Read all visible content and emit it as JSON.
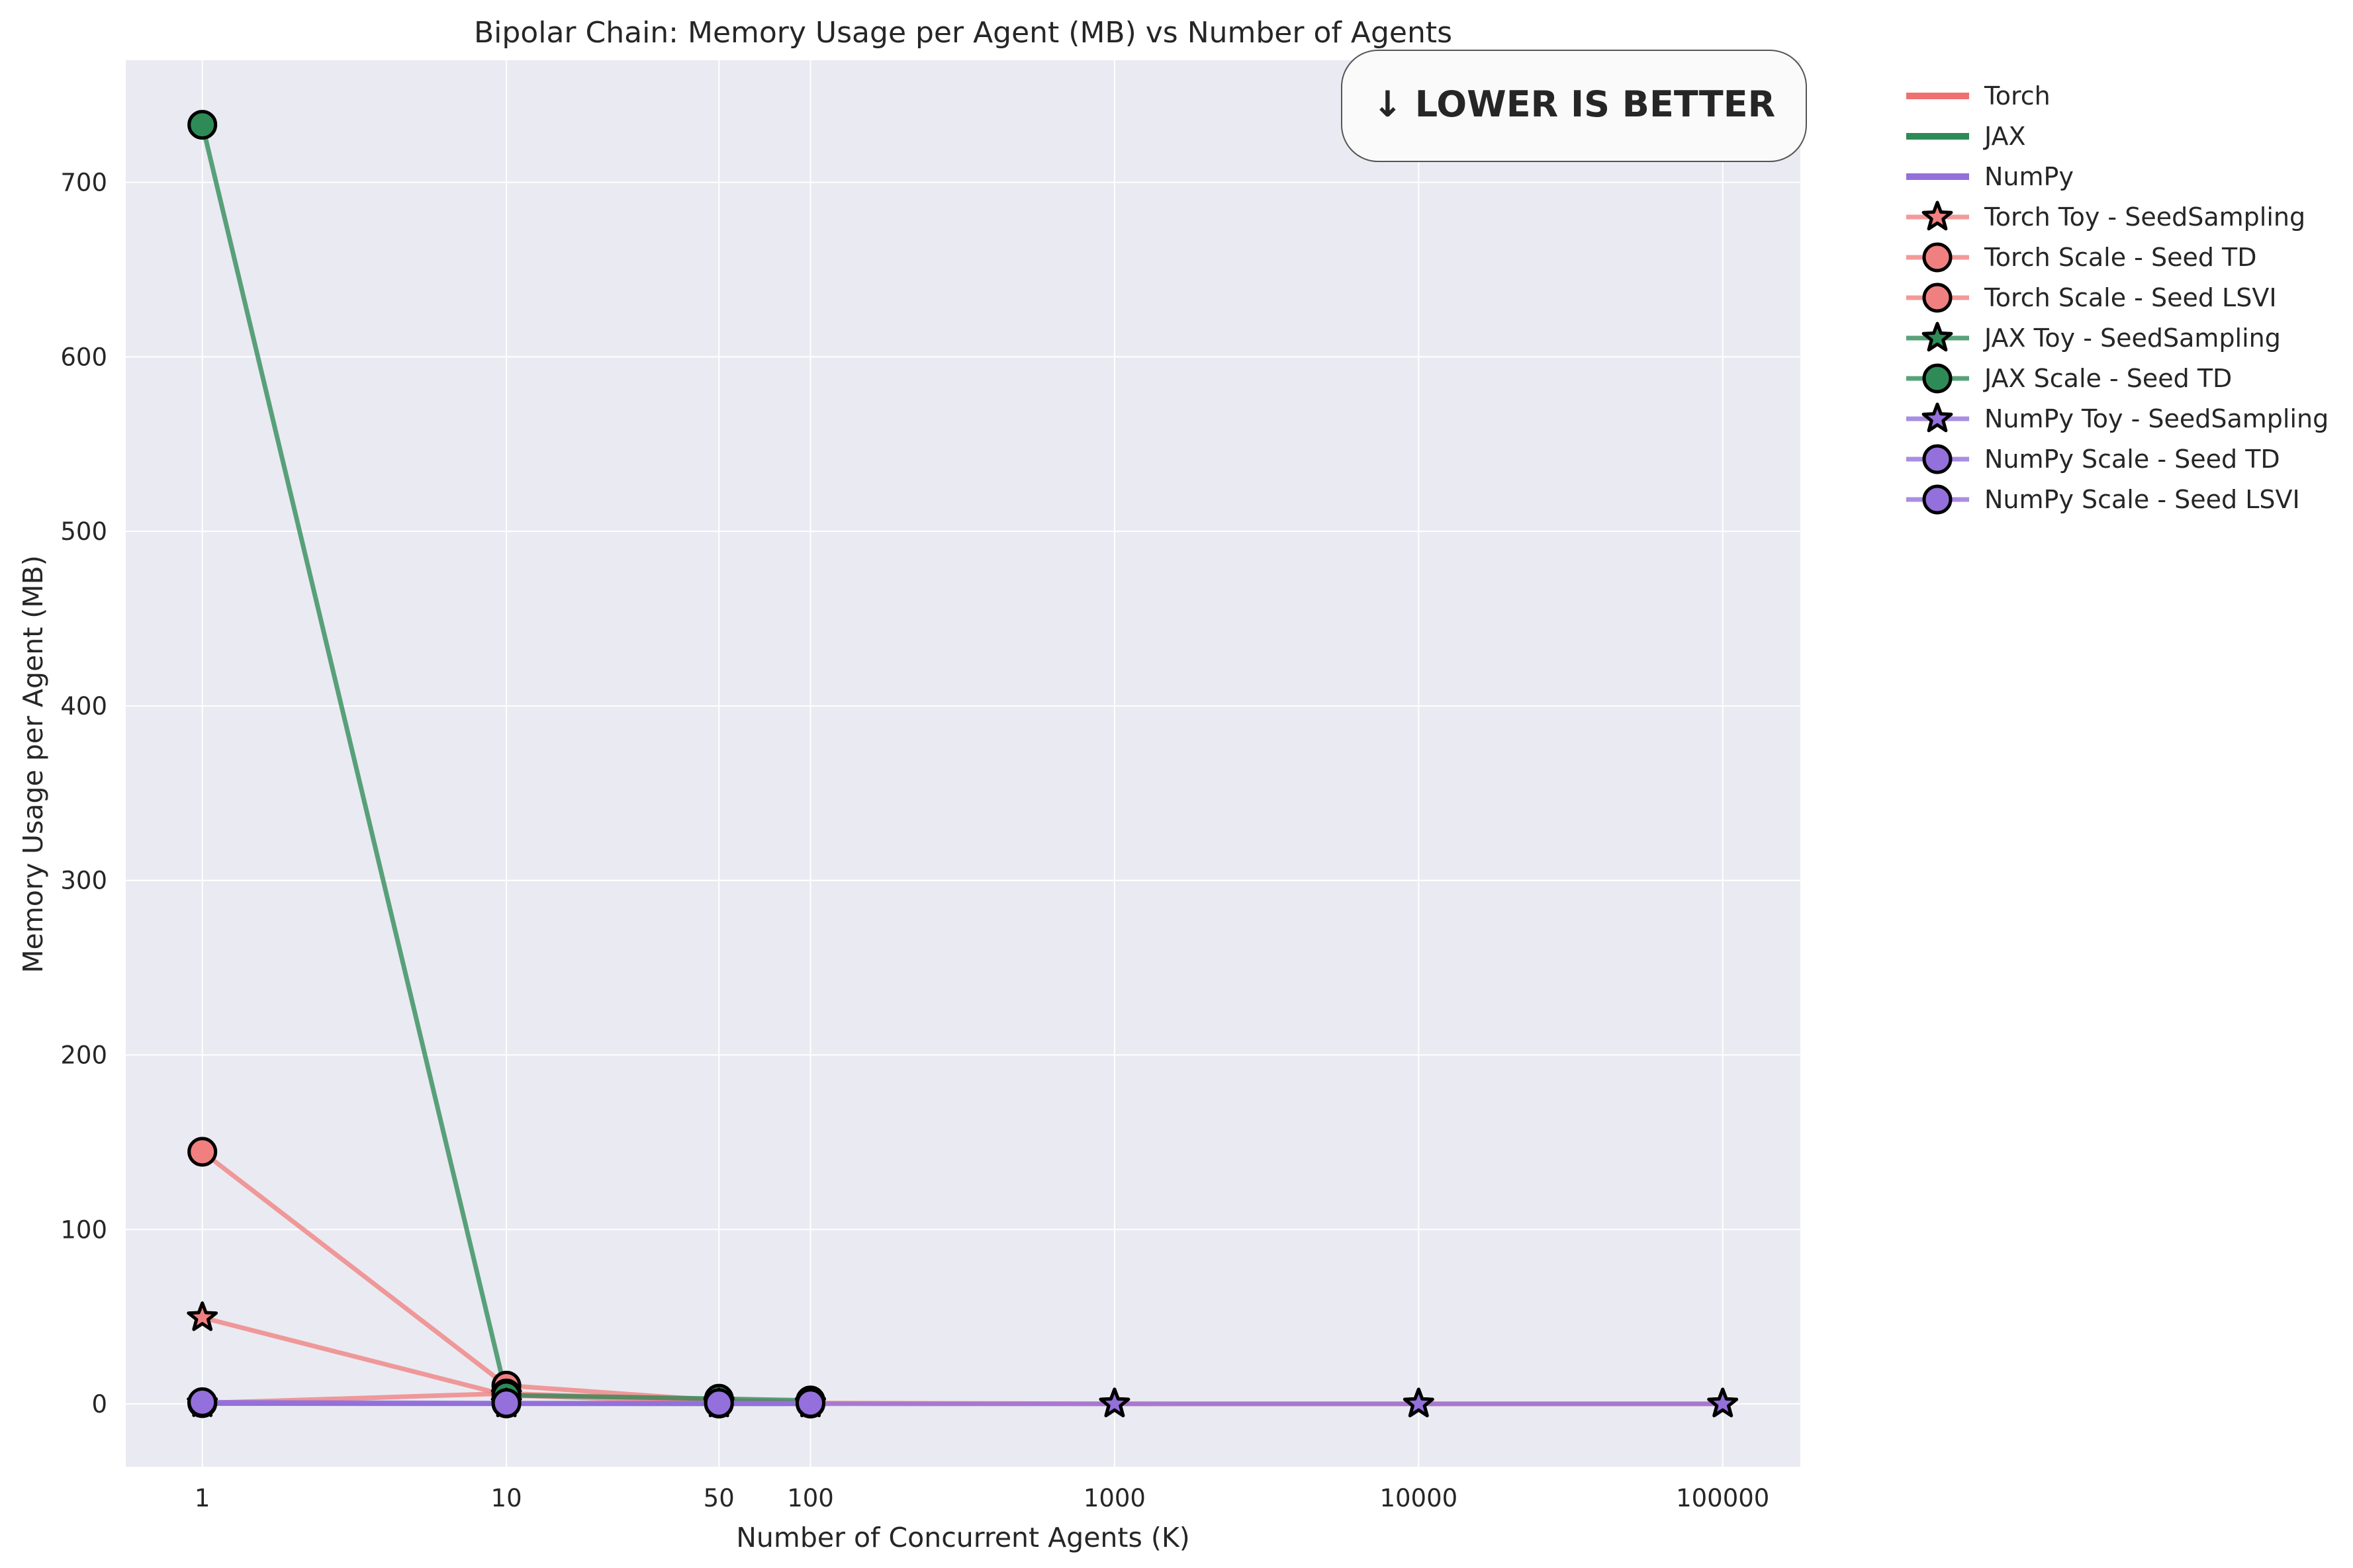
{
  "chart_data": {
    "type": "line",
    "title": "Bipolar Chain: Memory Usage per Agent (MB) vs Number of Agents",
    "xlabel": "Number of Concurrent Agents (K)",
    "ylabel": "Memory Usage per Agent (MB)",
    "xscale": "log",
    "xlim": [
      0.56,
      180000
    ],
    "ylim": [
      -36,
      770
    ],
    "xticks": [
      1,
      10,
      50,
      100,
      1000,
      10000,
      100000
    ],
    "xtick_labels": [
      "1",
      "10",
      "50",
      "100",
      "1000",
      "10000",
      "100000"
    ],
    "yticks": [
      0,
      100,
      200,
      300,
      400,
      500,
      600,
      700
    ],
    "ytick_labels": [
      "0",
      "100",
      "200",
      "300",
      "400",
      "500",
      "600",
      "700"
    ],
    "grid": true,
    "legend_position": "outside-right",
    "badge": "↓ LOWER IS BETTER",
    "series": [
      {
        "name": "Torch Toy - SeedSampling",
        "color": "#f08080",
        "marker": "star",
        "x": [
          1,
          10,
          50,
          100,
          1000,
          10000,
          100000
        ],
        "y": [
          49.5,
          5.0,
          1.0,
          0.5,
          0.1,
          0.05,
          0.05
        ]
      },
      {
        "name": "Torch Scale - Seed TD",
        "color": "#f08080",
        "marker": "circle",
        "x": [
          1,
          10,
          50,
          100
        ],
        "y": [
          144.5,
          10.5,
          2.0,
          1.0
        ]
      },
      {
        "name": "Torch Scale - Seed LSVI",
        "color": "#f08080",
        "marker": "circle",
        "x": [
          1,
          10,
          50,
          100
        ],
        "y": [
          0.5,
          6.0,
          2.0,
          1.0
        ]
      },
      {
        "name": "JAX Toy - SeedSampling",
        "color": "#2e8b57",
        "marker": "star",
        "x": [
          1,
          10,
          50,
          100
        ],
        "y": [
          0.3,
          0.2,
          0.1,
          0.1
        ]
      },
      {
        "name": "JAX Scale - Seed TD",
        "color": "#2e8b57",
        "marker": "circle",
        "x": [
          1,
          10,
          50,
          100
        ],
        "y": [
          733,
          5.0,
          3.0,
          2.0
        ]
      },
      {
        "name": "NumPy Toy - SeedSampling",
        "color": "#9370db",
        "marker": "star",
        "x": [
          1,
          10,
          50,
          100,
          1000,
          10000,
          100000
        ],
        "y": [
          0.2,
          0.1,
          0.1,
          0.1,
          0.05,
          0.05,
          0.05
        ]
      },
      {
        "name": "NumPy Scale - Seed TD",
        "color": "#9370db",
        "marker": "circle",
        "x": [
          1,
          10,
          50,
          100
        ],
        "y": [
          0.5,
          0.3,
          0.2,
          0.2
        ]
      },
      {
        "name": "NumPy Scale - Seed LSVI",
        "color": "#9370db",
        "marker": "circle",
        "x": [
          1,
          10,
          50,
          100
        ],
        "y": [
          1.0,
          0.5,
          0.5,
          0.5
        ]
      }
    ],
    "legend": [
      {
        "label": "Torch",
        "kind": "line",
        "color": "#f07070"
      },
      {
        "label": "JAX",
        "kind": "line",
        "color": "#2e8b57"
      },
      {
        "label": "NumPy",
        "kind": "line",
        "color": "#9370db"
      },
      {
        "label": "Torch Toy - SeedSampling",
        "kind": "star",
        "color": "#f08080"
      },
      {
        "label": "Torch Scale - Seed TD",
        "kind": "circle",
        "color": "#f08080"
      },
      {
        "label": "Torch Scale - Seed LSVI",
        "kind": "circle",
        "color": "#f08080"
      },
      {
        "label": "JAX Toy - SeedSampling",
        "kind": "star",
        "color": "#2e8b57"
      },
      {
        "label": "JAX Scale - Seed TD",
        "kind": "circle",
        "color": "#2e8b57"
      },
      {
        "label": "NumPy Toy - SeedSampling",
        "kind": "star",
        "color": "#9370db"
      },
      {
        "label": "NumPy Scale - Seed TD",
        "kind": "circle",
        "color": "#9370db"
      },
      {
        "label": "NumPy Scale - Seed LSVI",
        "kind": "circle",
        "color": "#9370db"
      }
    ]
  }
}
